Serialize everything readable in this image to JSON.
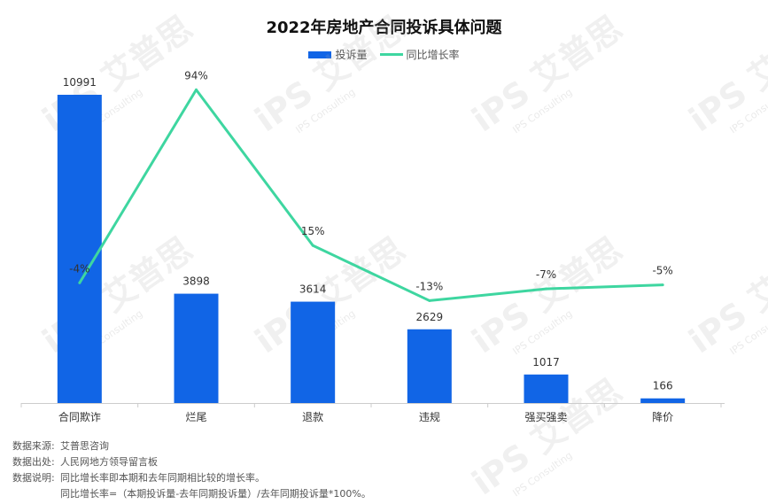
{
  "chart_data": {
    "type": "bar",
    "title": "2022年房地产合同投诉具体问题",
    "categories": [
      "合同欺诈",
      "烂尾",
      "退款",
      "违规",
      "强买强卖",
      "降价"
    ],
    "series": [
      {
        "name": "投诉量",
        "type": "bar",
        "values": [
          10991,
          3898,
          3614,
          2629,
          1017,
          166
        ],
        "labels": [
          "10991",
          "3898",
          "3614",
          "2629",
          "1017",
          "166"
        ]
      },
      {
        "name": "同比增长率",
        "type": "line",
        "values": [
          -4,
          94,
          15,
          -13,
          -7,
          -5
        ],
        "labels": [
          "-4%",
          "94%",
          "15%",
          "-13%",
          "-7%",
          "-5%"
        ]
      }
    ],
    "ylim_bar": [
      0,
      11000
    ],
    "ylim_line": [
      -20,
      100
    ],
    "legend": "top-center",
    "grid": false
  },
  "colors": {
    "bar": "#1165E6",
    "line": "#3ED6A0"
  },
  "watermark": {
    "text": "艾普思",
    "sub": "IPS Consulting"
  },
  "notes": [
    {
      "label": "数据来源:",
      "text": "艾普思咨询"
    },
    {
      "label": "数据出处:",
      "text": "人民网地方领导留言板"
    },
    {
      "label": "数据说明:",
      "text": "同比增长率即本期和去年同期相比较的增长率。"
    },
    {
      "label": "",
      "text": "同比增长率=（本期投诉量-去年同期投诉量）/去年同期投诉量*100%。"
    }
  ]
}
